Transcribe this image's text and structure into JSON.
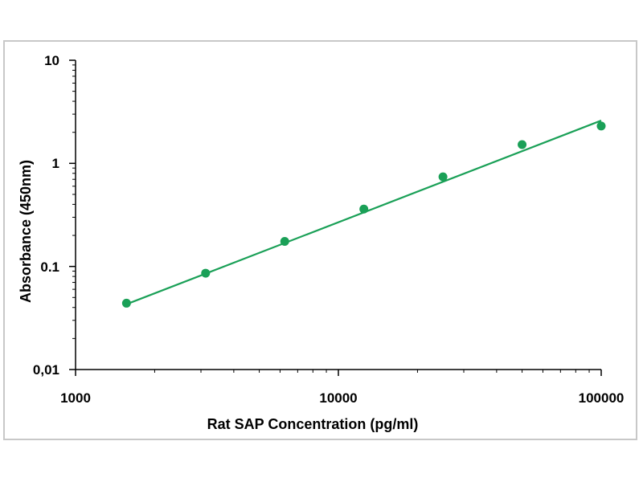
{
  "chart_data": {
    "type": "scatter",
    "xlabel": "Rat SAP Concentration (pg/ml)",
    "ylabel": "Absorbance (450nm)",
    "xscale": "log",
    "yscale": "log",
    "xlim": [
      1000,
      100000
    ],
    "ylim": [
      0.01,
      10
    ],
    "x_tick_labels": [
      "1000",
      "10000",
      "100000"
    ],
    "y_tick_labels": [
      "10",
      "1",
      "0.1",
      "0,01"
    ],
    "grid": false,
    "legend": "none",
    "marker_color": "#1aa057",
    "line_color": "#1aa057",
    "series": [
      {
        "x": [
          1562.5,
          3125,
          6250,
          12500,
          25000,
          50000,
          100000
        ],
        "y": [
          0.044,
          0.086,
          0.175,
          0.36,
          0.74,
          1.52,
          2.3
        ]
      }
    ],
    "fit_line": {
      "x": [
        1562.5,
        100000
      ],
      "y": [
        0.043,
        2.6
      ]
    }
  }
}
